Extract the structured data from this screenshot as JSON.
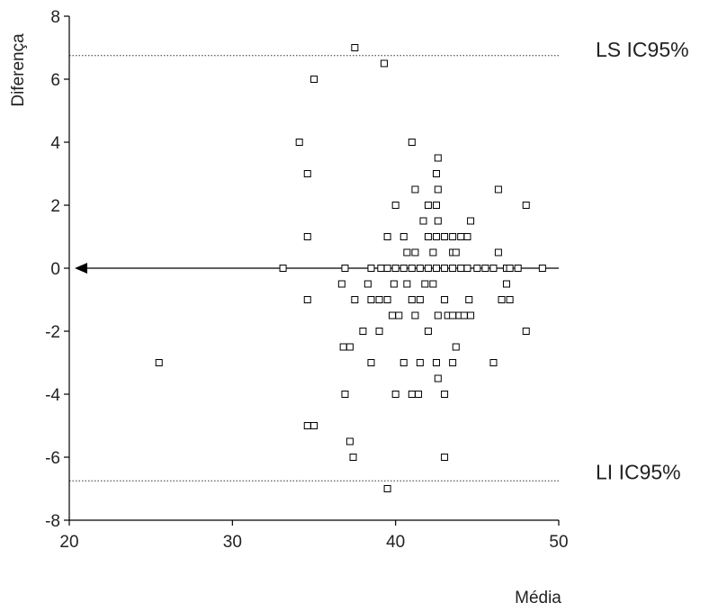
{
  "chart_data": {
    "type": "scatter",
    "title": "",
    "xlabel": "Média",
    "ylabel": "Diferença",
    "xlim": [
      20,
      50
    ],
    "ylim": [
      -8,
      8
    ],
    "xticks": [
      "20",
      "30",
      "40",
      "50"
    ],
    "yticks": [
      "8",
      "6",
      "4",
      "2",
      "0",
      "-2",
      "-4",
      "-6",
      "-8"
    ],
    "grid": false,
    "reference_lines": [
      {
        "label": "LS IC95%",
        "y": 6.75,
        "style": "dotted"
      },
      {
        "label": "",
        "y": 0,
        "style": "solid",
        "arrow": "left"
      },
      {
        "label": "LI IC95%",
        "y": -6.75,
        "style": "dotted"
      }
    ],
    "series": [
      {
        "marker": "square",
        "points": [
          {
            "x": 25.5,
            "y": -3
          },
          {
            "x": 33.1,
            "y": 0
          },
          {
            "x": 34.1,
            "y": 4
          },
          {
            "x": 34.6,
            "y": 3
          },
          {
            "x": 34.6,
            "y": 1
          },
          {
            "x": 34.6,
            "y": -1
          },
          {
            "x": 34.6,
            "y": -5
          },
          {
            "x": 35.0,
            "y": -5
          },
          {
            "x": 35.0,
            "y": 6
          },
          {
            "x": 36.7,
            "y": -0.5
          },
          {
            "x": 36.8,
            "y": -2.5
          },
          {
            "x": 36.9,
            "y": 0
          },
          {
            "x": 36.9,
            "y": -4
          },
          {
            "x": 37.2,
            "y": -2.5
          },
          {
            "x": 37.2,
            "y": -5.5
          },
          {
            "x": 37.4,
            "y": -6
          },
          {
            "x": 37.5,
            "y": -1
          },
          {
            "x": 37.5,
            "y": 7
          },
          {
            "x": 38.0,
            "y": -2
          },
          {
            "x": 38.3,
            "y": -0.5
          },
          {
            "x": 38.5,
            "y": -1
          },
          {
            "x": 38.5,
            "y": 0
          },
          {
            "x": 38.5,
            "y": -3
          },
          {
            "x": 39.0,
            "y": -1
          },
          {
            "x": 39.0,
            "y": -2
          },
          {
            "x": 39.1,
            "y": 0
          },
          {
            "x": 39.3,
            "y": 6.5
          },
          {
            "x": 39.5,
            "y": -1
          },
          {
            "x": 39.5,
            "y": 1
          },
          {
            "x": 39.5,
            "y": 0
          },
          {
            "x": 39.5,
            "y": -7
          },
          {
            "x": 39.8,
            "y": -1.5
          },
          {
            "x": 39.9,
            "y": -0.5
          },
          {
            "x": 40.0,
            "y": 0
          },
          {
            "x": 40.0,
            "y": 2
          },
          {
            "x": 40.0,
            "y": -4
          },
          {
            "x": 40.2,
            "y": -1.5
          },
          {
            "x": 40.5,
            "y": 0
          },
          {
            "x": 40.5,
            "y": 1
          },
          {
            "x": 40.5,
            "y": -3
          },
          {
            "x": 40.7,
            "y": 0.5
          },
          {
            "x": 40.7,
            "y": -0.5
          },
          {
            "x": 41.0,
            "y": 0
          },
          {
            "x": 41.0,
            "y": -1
          },
          {
            "x": 41.0,
            "y": -4
          },
          {
            "x": 41.0,
            "y": 4
          },
          {
            "x": 41.2,
            "y": 0.5
          },
          {
            "x": 41.2,
            "y": 2.5
          },
          {
            "x": 41.2,
            "y": -1.5
          },
          {
            "x": 41.4,
            "y": -4
          },
          {
            "x": 41.5,
            "y": 0
          },
          {
            "x": 41.5,
            "y": -1
          },
          {
            "x": 41.5,
            "y": -3
          },
          {
            "x": 41.7,
            "y": 1.5
          },
          {
            "x": 41.8,
            "y": -0.5
          },
          {
            "x": 42.0,
            "y": 0
          },
          {
            "x": 42.0,
            "y": 2
          },
          {
            "x": 42.0,
            "y": 1
          },
          {
            "x": 42.0,
            "y": -2
          },
          {
            "x": 42.3,
            "y": 0.5
          },
          {
            "x": 42.3,
            "y": -0.5
          },
          {
            "x": 42.5,
            "y": 0
          },
          {
            "x": 42.5,
            "y": 1
          },
          {
            "x": 42.5,
            "y": 2
          },
          {
            "x": 42.5,
            "y": 3
          },
          {
            "x": 42.5,
            "y": -3
          },
          {
            "x": 42.6,
            "y": 3.5
          },
          {
            "x": 42.6,
            "y": 2.5
          },
          {
            "x": 42.6,
            "y": 1.5
          },
          {
            "x": 42.6,
            "y": -1.5
          },
          {
            "x": 42.6,
            "y": -3.5
          },
          {
            "x": 43.0,
            "y": 0
          },
          {
            "x": 43.0,
            "y": -1
          },
          {
            "x": 43.0,
            "y": 1
          },
          {
            "x": 43.0,
            "y": -4
          },
          {
            "x": 43.0,
            "y": -6
          },
          {
            "x": 43.2,
            "y": -1.5
          },
          {
            "x": 43.5,
            "y": 0.5
          },
          {
            "x": 43.5,
            "y": 0
          },
          {
            "x": 43.5,
            "y": 1
          },
          {
            "x": 43.5,
            "y": -3
          },
          {
            "x": 43.5,
            "y": -1.5
          },
          {
            "x": 43.7,
            "y": 0.5
          },
          {
            "x": 43.7,
            "y": -2.5
          },
          {
            "x": 43.9,
            "y": -1.5
          },
          {
            "x": 44.0,
            "y": 0
          },
          {
            "x": 44.0,
            "y": 1
          },
          {
            "x": 44.2,
            "y": -1.5
          },
          {
            "x": 44.4,
            "y": 0
          },
          {
            "x": 44.4,
            "y": 1
          },
          {
            "x": 44.5,
            "y": -1
          },
          {
            "x": 44.6,
            "y": 1.5
          },
          {
            "x": 44.6,
            "y": -1.5
          },
          {
            "x": 45.0,
            "y": 0
          },
          {
            "x": 45.5,
            "y": 0
          },
          {
            "x": 46.0,
            "y": 0
          },
          {
            "x": 46.0,
            "y": -3
          },
          {
            "x": 46.3,
            "y": 2.5
          },
          {
            "x": 46.3,
            "y": 0.5
          },
          {
            "x": 46.5,
            "y": -1
          },
          {
            "x": 46.8,
            "y": -0.5
          },
          {
            "x": 46.8,
            "y": 0
          },
          {
            "x": 47.0,
            "y": -1
          },
          {
            "x": 47.0,
            "y": 0
          },
          {
            "x": 47.5,
            "y": 0
          },
          {
            "x": 48.0,
            "y": 2
          },
          {
            "x": 48.0,
            "y": -2
          },
          {
            "x": 49.0,
            "y": 0
          }
        ]
      }
    ]
  }
}
